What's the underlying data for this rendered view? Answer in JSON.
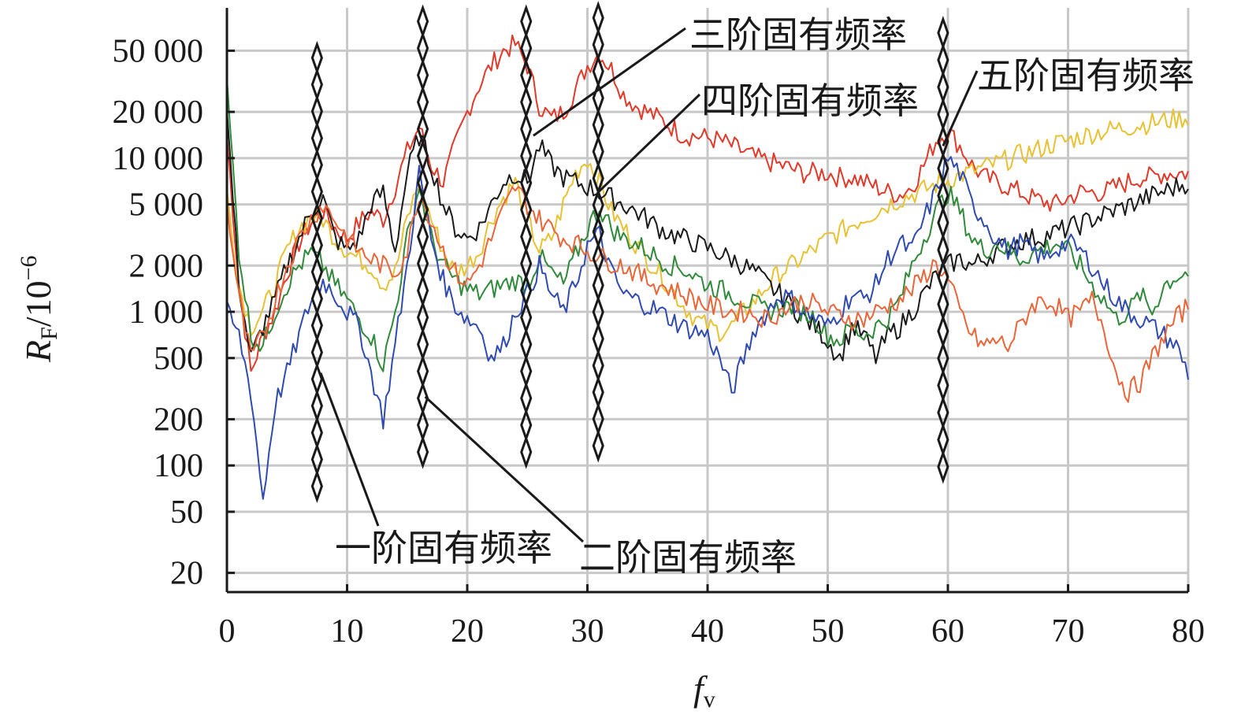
{
  "chart_data": {
    "type": "line",
    "xlabel_main": "f",
    "xlabel_sub": "v",
    "ylabel_main": "R",
    "ylabel_sub": "F",
    "ylabel_unit": "/10",
    "ylabel_exp": "−6",
    "xlim": [
      0,
      80
    ],
    "y_scale": "log",
    "ylim": [
      15,
      95000
    ],
    "x_ticks": [
      0,
      10,
      20,
      30,
      40,
      50,
      60,
      70,
      80
    ],
    "x_tick_labels": [
      "0",
      "10",
      "20",
      "30",
      "40",
      "50",
      "60",
      "70",
      "80"
    ],
    "y_ticks": [
      20,
      50,
      100,
      200,
      500,
      1000,
      2000,
      5000,
      10000,
      20000,
      50000
    ],
    "y_tick_labels": [
      "20",
      "50",
      "100",
      "200",
      "500",
      "1 000",
      "2 000",
      "5 000",
      "10 000",
      "20 000",
      "50 000"
    ],
    "grid": true,
    "series": [
      {
        "color": "#e03a2b",
        "x": [
          0,
          1,
          2,
          3,
          4,
          5,
          6,
          7,
          8,
          9,
          10,
          11,
          12,
          13,
          14,
          15,
          16,
          17,
          18,
          19,
          20,
          21,
          22,
          23,
          24,
          25,
          26,
          27,
          28,
          29,
          30,
          31,
          32,
          33,
          34,
          35,
          36,
          37,
          38,
          39,
          40,
          41,
          42,
          43,
          44,
          45,
          46,
          47,
          48,
          49,
          50,
          51,
          52,
          53,
          54,
          55,
          56,
          57,
          58,
          59,
          60,
          61,
          62,
          63,
          64,
          65,
          66,
          67,
          68,
          69,
          70,
          71,
          72,
          73,
          74,
          75,
          76,
          77,
          78,
          79,
          80
        ],
        "y": [
          14000,
          1500,
          400,
          700,
          1000,
          1800,
          2800,
          3800,
          4500,
          3500,
          3000,
          3800,
          4500,
          4000,
          6500,
          11000,
          16000,
          9000,
          7000,
          12000,
          20000,
          30000,
          40000,
          50000,
          55000,
          40000,
          22000,
          18000,
          20000,
          28000,
          40000,
          48000,
          38000,
          26000,
          22000,
          20000,
          18000,
          16000,
          14000,
          14000,
          13500,
          13000,
          12000,
          11000,
          10000,
          9500,
          9000,
          8500,
          8000,
          8000,
          8000,
          7500,
          7500,
          7000,
          6500,
          6000,
          5800,
          6500,
          9000,
          13000,
          15000,
          12000,
          9000,
          7500,
          7000,
          6500,
          6000,
          5500,
          5200,
          5000,
          5500,
          6000,
          6000,
          6000,
          6500,
          7000,
          7500,
          7500,
          8000,
          8000,
          8000
        ]
      },
      {
        "color": "#e8c234",
        "x": [
          0,
          1,
          2,
          3,
          4,
          5,
          6,
          7,
          8,
          9,
          10,
          11,
          12,
          13,
          14,
          15,
          16,
          17,
          18,
          19,
          20,
          21,
          22,
          23,
          24,
          25,
          26,
          27,
          28,
          29,
          30,
          31,
          32,
          33,
          34,
          35,
          36,
          37,
          38,
          39,
          40,
          41,
          42,
          43,
          44,
          45,
          46,
          47,
          48,
          49,
          50,
          51,
          52,
          53,
          54,
          55,
          56,
          57,
          58,
          59,
          60,
          61,
          62,
          63,
          64,
          65,
          66,
          67,
          68,
          69,
          70,
          71,
          72,
          73,
          74,
          75,
          76,
          77,
          78,
          79,
          80
        ],
        "y": [
          6000,
          1500,
          800,
          1000,
          1500,
          2500,
          3500,
          4200,
          4000,
          3000,
          2500,
          2200,
          2000,
          1500,
          1800,
          4000,
          7000,
          4000,
          2500,
          1800,
          2000,
          2500,
          4000,
          5500,
          7000,
          4000,
          2500,
          3000,
          5000,
          8000,
          10000,
          7000,
          4500,
          3500,
          2800,
          2200,
          1800,
          1400,
          1100,
          900,
          800,
          750,
          800,
          1000,
          1200,
          1500,
          1800,
          2000,
          2300,
          2600,
          3000,
          3300,
          3700,
          4100,
          4500,
          5000,
          5400,
          5800,
          6200,
          6700,
          7200,
          7700,
          8200,
          8700,
          9200,
          9800,
          10500,
          11000,
          11800,
          12500,
          13000,
          13800,
          14500,
          15000,
          15500,
          16000,
          16500,
          17000,
          17500,
          18000,
          18500
        ]
      },
      {
        "color": "#1a1a1a",
        "x": [
          0,
          1,
          2,
          3,
          4,
          5,
          6,
          7,
          8,
          9,
          10,
          11,
          12,
          13,
          14,
          15,
          16,
          17,
          18,
          19,
          20,
          21,
          22,
          23,
          24,
          25,
          26,
          27,
          28,
          29,
          30,
          31,
          32,
          33,
          34,
          35,
          36,
          37,
          38,
          39,
          40,
          41,
          42,
          43,
          44,
          45,
          46,
          47,
          48,
          49,
          50,
          51,
          52,
          53,
          54,
          55,
          56,
          57,
          58,
          59,
          60,
          61,
          62,
          63,
          64,
          65,
          66,
          67,
          68,
          69,
          70,
          71,
          72,
          73,
          74,
          75,
          76,
          77,
          78,
          79,
          80
        ],
        "y": [
          20000,
          1500,
          500,
          800,
          1200,
          2000,
          3000,
          4500,
          5500,
          3000,
          2500,
          3000,
          5000,
          6000,
          2500,
          8000,
          14000,
          9000,
          5000,
          3500,
          3000,
          3500,
          5000,
          7000,
          8000,
          7000,
          12000,
          9000,
          7500,
          7000,
          6500,
          6000,
          5500,
          5000,
          4500,
          4000,
          3500,
          3200,
          3000,
          2800,
          2600,
          2400,
          2200,
          2000,
          1800,
          1500,
          1300,
          1100,
          900,
          800,
          650,
          500,
          800,
          700,
          500,
          700,
          800,
          1000,
          1300,
          1700,
          2000,
          2200,
          2000,
          2200,
          2500,
          2700,
          2900,
          3000,
          3100,
          3300,
          3500,
          3700,
          4000,
          4300,
          4600,
          4900,
          5300,
          5700,
          6100,
          6500,
          7000
        ]
      },
      {
        "color": "#2f8a3a",
        "x": [
          0,
          1,
          2,
          3,
          4,
          5,
          6,
          7,
          8,
          9,
          10,
          11,
          12,
          13,
          14,
          15,
          16,
          17,
          18,
          19,
          20,
          21,
          22,
          23,
          24,
          25,
          26,
          27,
          28,
          29,
          30,
          31,
          32,
          33,
          34,
          35,
          36,
          37,
          38,
          39,
          40,
          41,
          42,
          43,
          44,
          45,
          46,
          47,
          48,
          49,
          50,
          51,
          52,
          53,
          54,
          55,
          56,
          57,
          58,
          59,
          60,
          61,
          62,
          63,
          64,
          65,
          66,
          67,
          68,
          69,
          70,
          71,
          72,
          73,
          74,
          75,
          76,
          77,
          78,
          79,
          80
        ],
        "y": [
          30000,
          2500,
          700,
          600,
          1000,
          1500,
          2000,
          2400,
          2000,
          1500,
          1200,
          900,
          700,
          450,
          1000,
          3000,
          6500,
          3000,
          2000,
          1600,
          1400,
          1300,
          1400,
          1500,
          1600,
          1500,
          2300,
          1800,
          1500,
          2300,
          3500,
          4800,
          3500,
          3000,
          2800,
          2500,
          2200,
          2000,
          1900,
          1700,
          1500,
          1400,
          1300,
          1200,
          1100,
          1000,
          1050,
          1100,
          1000,
          900,
          700,
          650,
          800,
          700,
          800,
          900,
          1200,
          2000,
          3000,
          4500,
          6000,
          4500,
          3000,
          2500,
          2800,
          2500,
          2200,
          2400,
          2600,
          2800,
          2500,
          2000,
          1500,
          1200,
          900,
          1000,
          1300,
          1000,
          1500,
          1700,
          1800
        ]
      },
      {
        "color": "#2f4bb0",
        "x": [
          0,
          1,
          2,
          3,
          4,
          5,
          6,
          7,
          8,
          9,
          10,
          11,
          12,
          13,
          14,
          15,
          16,
          17,
          18,
          19,
          20,
          21,
          22,
          23,
          24,
          25,
          26,
          27,
          28,
          29,
          30,
          31,
          32,
          33,
          34,
          35,
          36,
          37,
          38,
          39,
          40,
          41,
          42,
          43,
          44,
          45,
          46,
          47,
          48,
          49,
          50,
          51,
          52,
          53,
          54,
          55,
          56,
          57,
          58,
          59,
          60,
          61,
          62,
          63,
          64,
          65,
          66,
          67,
          68,
          69,
          70,
          71,
          72,
          73,
          74,
          75,
          76,
          77,
          78,
          79,
          80
        ],
        "y": [
          1000,
          700,
          300,
          60,
          250,
          400,
          700,
          1200,
          1600,
          1300,
          1000,
          800,
          400,
          200,
          600,
          2000,
          8000,
          3000,
          1600,
          1100,
          900,
          800,
          500,
          600,
          1000,
          1300,
          2000,
          1300,
          1000,
          1500,
          2700,
          3200,
          1800,
          1300,
          1200,
          1100,
          1000,
          900,
          800,
          750,
          700,
          500,
          300,
          500,
          800,
          1000,
          1300,
          1200,
          1000,
          900,
          800,
          1000,
          1300,
          1200,
          1500,
          2200,
          2800,
          2500,
          4000,
          6000,
          10000,
          8000,
          5000,
          4000,
          3000,
          2500,
          2800,
          2500,
          2200,
          2600,
          2800,
          2500,
          2000,
          1500,
          1200,
          1000,
          900,
          800,
          700,
          600,
          400
        ]
      },
      {
        "color": "#e8663a",
        "x": [
          0,
          1,
          2,
          3,
          4,
          5,
          6,
          7,
          8,
          9,
          10,
          11,
          12,
          13,
          14,
          15,
          16,
          17,
          18,
          19,
          20,
          21,
          22,
          23,
          24,
          25,
          26,
          27,
          28,
          29,
          30,
          31,
          32,
          33,
          34,
          35,
          36,
          37,
          38,
          39,
          40,
          41,
          42,
          43,
          44,
          45,
          46,
          47,
          48,
          49,
          50,
          51,
          52,
          53,
          54,
          55,
          56,
          57,
          58,
          59,
          60,
          61,
          62,
          63,
          64,
          65,
          66,
          67,
          68,
          69,
          70,
          71,
          72,
          73,
          74,
          75,
          76,
          77,
          78,
          79,
          80
        ],
        "y": [
          5000,
          1200,
          500,
          700,
          1200,
          2000,
          3000,
          4000,
          5000,
          4000,
          3000,
          2500,
          2200,
          2000,
          1800,
          2500,
          6000,
          4000,
          2500,
          1800,
          1500,
          2000,
          3000,
          4500,
          6500,
          5000,
          4000,
          3500,
          3000,
          2800,
          2500,
          2300,
          2100,
          2000,
          1800,
          1600,
          1500,
          1400,
          1300,
          1200,
          1100,
          1050,
          1000,
          1000,
          950,
          900,
          1000,
          1100,
          1200,
          1100,
          1000,
          950,
          900,
          900,
          1000,
          1100,
          1200,
          1400,
          1700,
          2100,
          1600,
          1000,
          700,
          600,
          650,
          600,
          800,
          1100,
          1200,
          1100,
          900,
          1000,
          1200,
          800,
          400,
          300,
          350,
          500,
          700,
          900,
          1100
        ]
      }
    ],
    "natural_frequency_markers": [
      {
        "x": 7.5,
        "y_top": 55000,
        "y_bottom": 60
      },
      {
        "x": 16.3,
        "y_top": 95000,
        "y_bottom": 100
      },
      {
        "x": 24.9,
        "y_top": 95000,
        "y_bottom": 100
      },
      {
        "x": 30.9,
        "y_top": 100000,
        "y_bottom": 110
      },
      {
        "x": 59.6,
        "y_top": 80000,
        "y_bottom": 80
      }
    ],
    "annotations": [
      {
        "id": "first",
        "label": "一阶固有频率",
        "target_x": 7.8,
        "target_y": 400
      },
      {
        "id": "second",
        "label": "二阶固有频率",
        "target_x": 16.5,
        "target_y": 280
      },
      {
        "id": "third",
        "label": "三阶固有频率",
        "target_x": 25.5,
        "target_y": 14000
      },
      {
        "id": "fourth",
        "label": "四阶固有频率",
        "target_x": 30.9,
        "target_y": 6000
      },
      {
        "id": "fifth",
        "label": "五阶固有频率",
        "target_x": 59.6,
        "target_y": 12000
      }
    ]
  }
}
